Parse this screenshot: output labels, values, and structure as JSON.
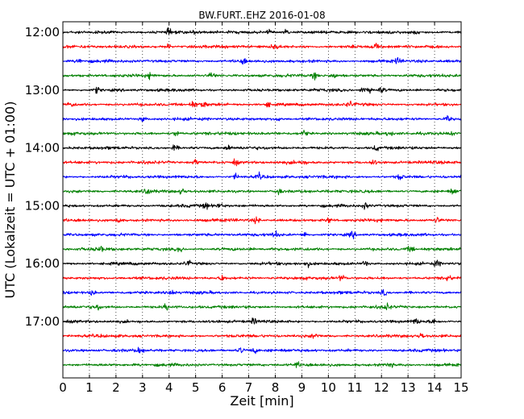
{
  "chart_data": {
    "type": "line",
    "title": "BW.FURT..EHZ 2016-01-08",
    "xlabel": "Zeit  [min]",
    "ylabel": "UTC (Lokalzeit = UTC + 01:00)",
    "xlim": [
      0,
      15
    ],
    "x_ticks": [
      "0",
      "1",
      "2",
      "3",
      "4",
      "5",
      "6",
      "7",
      "8",
      "9",
      "10",
      "11",
      "12",
      "13",
      "14",
      "15"
    ],
    "y_ticks": [
      "12:00",
      "13:00",
      "14:00",
      "15:00",
      "16:00",
      "17:00"
    ],
    "row_interval_min": 15,
    "row_count": 24,
    "first_row": "12:00",
    "last_row": "17:45",
    "colors_cycle": [
      "#000000",
      "#ff0000",
      "#0000ff",
      "#008000"
    ],
    "grid": "vertical dotted at each minute",
    "series": [
      {
        "row": "12:00",
        "color": "#000000",
        "events_min": [
          4.0,
          5.0,
          7.8,
          8.4,
          13.3
        ]
      },
      {
        "row": "12:15",
        "color": "#ff0000",
        "events_min": [
          4.0,
          8.0,
          11.8
        ]
      },
      {
        "row": "12:30",
        "color": "#0000ff",
        "events_min": [
          0.6,
          6.8,
          12.6
        ]
      },
      {
        "row": "12:45",
        "color": "#008000",
        "events_min": [
          3.3,
          5.6,
          9.5,
          10.2
        ]
      },
      {
        "row": "13:00",
        "color": "#000000",
        "events_min": [
          1.3,
          11.3,
          11.6,
          12.0
        ]
      },
      {
        "row": "13:15",
        "color": "#ff0000",
        "events_min": [
          0.3,
          4.9,
          5.3,
          7.7,
          10.8
        ]
      },
      {
        "row": "13:30",
        "color": "#0000ff",
        "events_min": [
          3.0,
          8.1,
          14.5
        ]
      },
      {
        "row": "13:45",
        "color": "#008000",
        "events_min": [
          4.3,
          9.1,
          12.3,
          14.6
        ]
      },
      {
        "row": "14:00",
        "color": "#000000",
        "events_min": [
          4.2,
          6.2,
          11.8
        ]
      },
      {
        "row": "14:15",
        "color": "#ff0000",
        "events_min": [
          5.0,
          6.5,
          9.0,
          11.7
        ]
      },
      {
        "row": "14:30",
        "color": "#0000ff",
        "events_min": [
          6.5,
          7.4,
          12.7
        ]
      },
      {
        "row": "14:45",
        "color": "#008000",
        "events_min": [
          3.2,
          4.5,
          8.1,
          14.7
        ]
      },
      {
        "row": "15:00",
        "color": "#000000",
        "events_min": [
          5.4,
          5.9,
          11.4
        ]
      },
      {
        "row": "15:15",
        "color": "#ff0000",
        "events_min": [
          2.1,
          7.3,
          10.0,
          14.1
        ]
      },
      {
        "row": "15:30",
        "color": "#0000ff",
        "events_min": [
          8.0,
          9.1,
          10.9
        ]
      },
      {
        "row": "15:45",
        "color": "#008000",
        "events_min": [
          1.4,
          4.4,
          13.1
        ]
      },
      {
        "row": "16:00",
        "color": "#000000",
        "events_min": [
          4.7,
          9.2,
          11.4,
          14.1
        ]
      },
      {
        "row": "16:15",
        "color": "#ff0000",
        "events_min": [
          6.0,
          10.5,
          14.5
        ]
      },
      {
        "row": "16:30",
        "color": "#0000ff",
        "events_min": [
          1.1,
          4.1,
          12.1
        ]
      },
      {
        "row": "16:45",
        "color": "#008000",
        "events_min": [
          1.3,
          3.9,
          12.2
        ]
      },
      {
        "row": "17:00",
        "color": "#000000",
        "events_min": [
          7.2,
          13.3,
          14.0
        ]
      },
      {
        "row": "17:15",
        "color": "#ff0000",
        "events_min": [
          9.5,
          13.5
        ]
      },
      {
        "row": "17:30",
        "color": "#0000ff",
        "events_min": [
          2.9,
          6.7,
          7.2
        ]
      },
      {
        "row": "17:45",
        "color": "#008000",
        "events_min": [
          8.8,
          12.3
        ]
      }
    ]
  }
}
